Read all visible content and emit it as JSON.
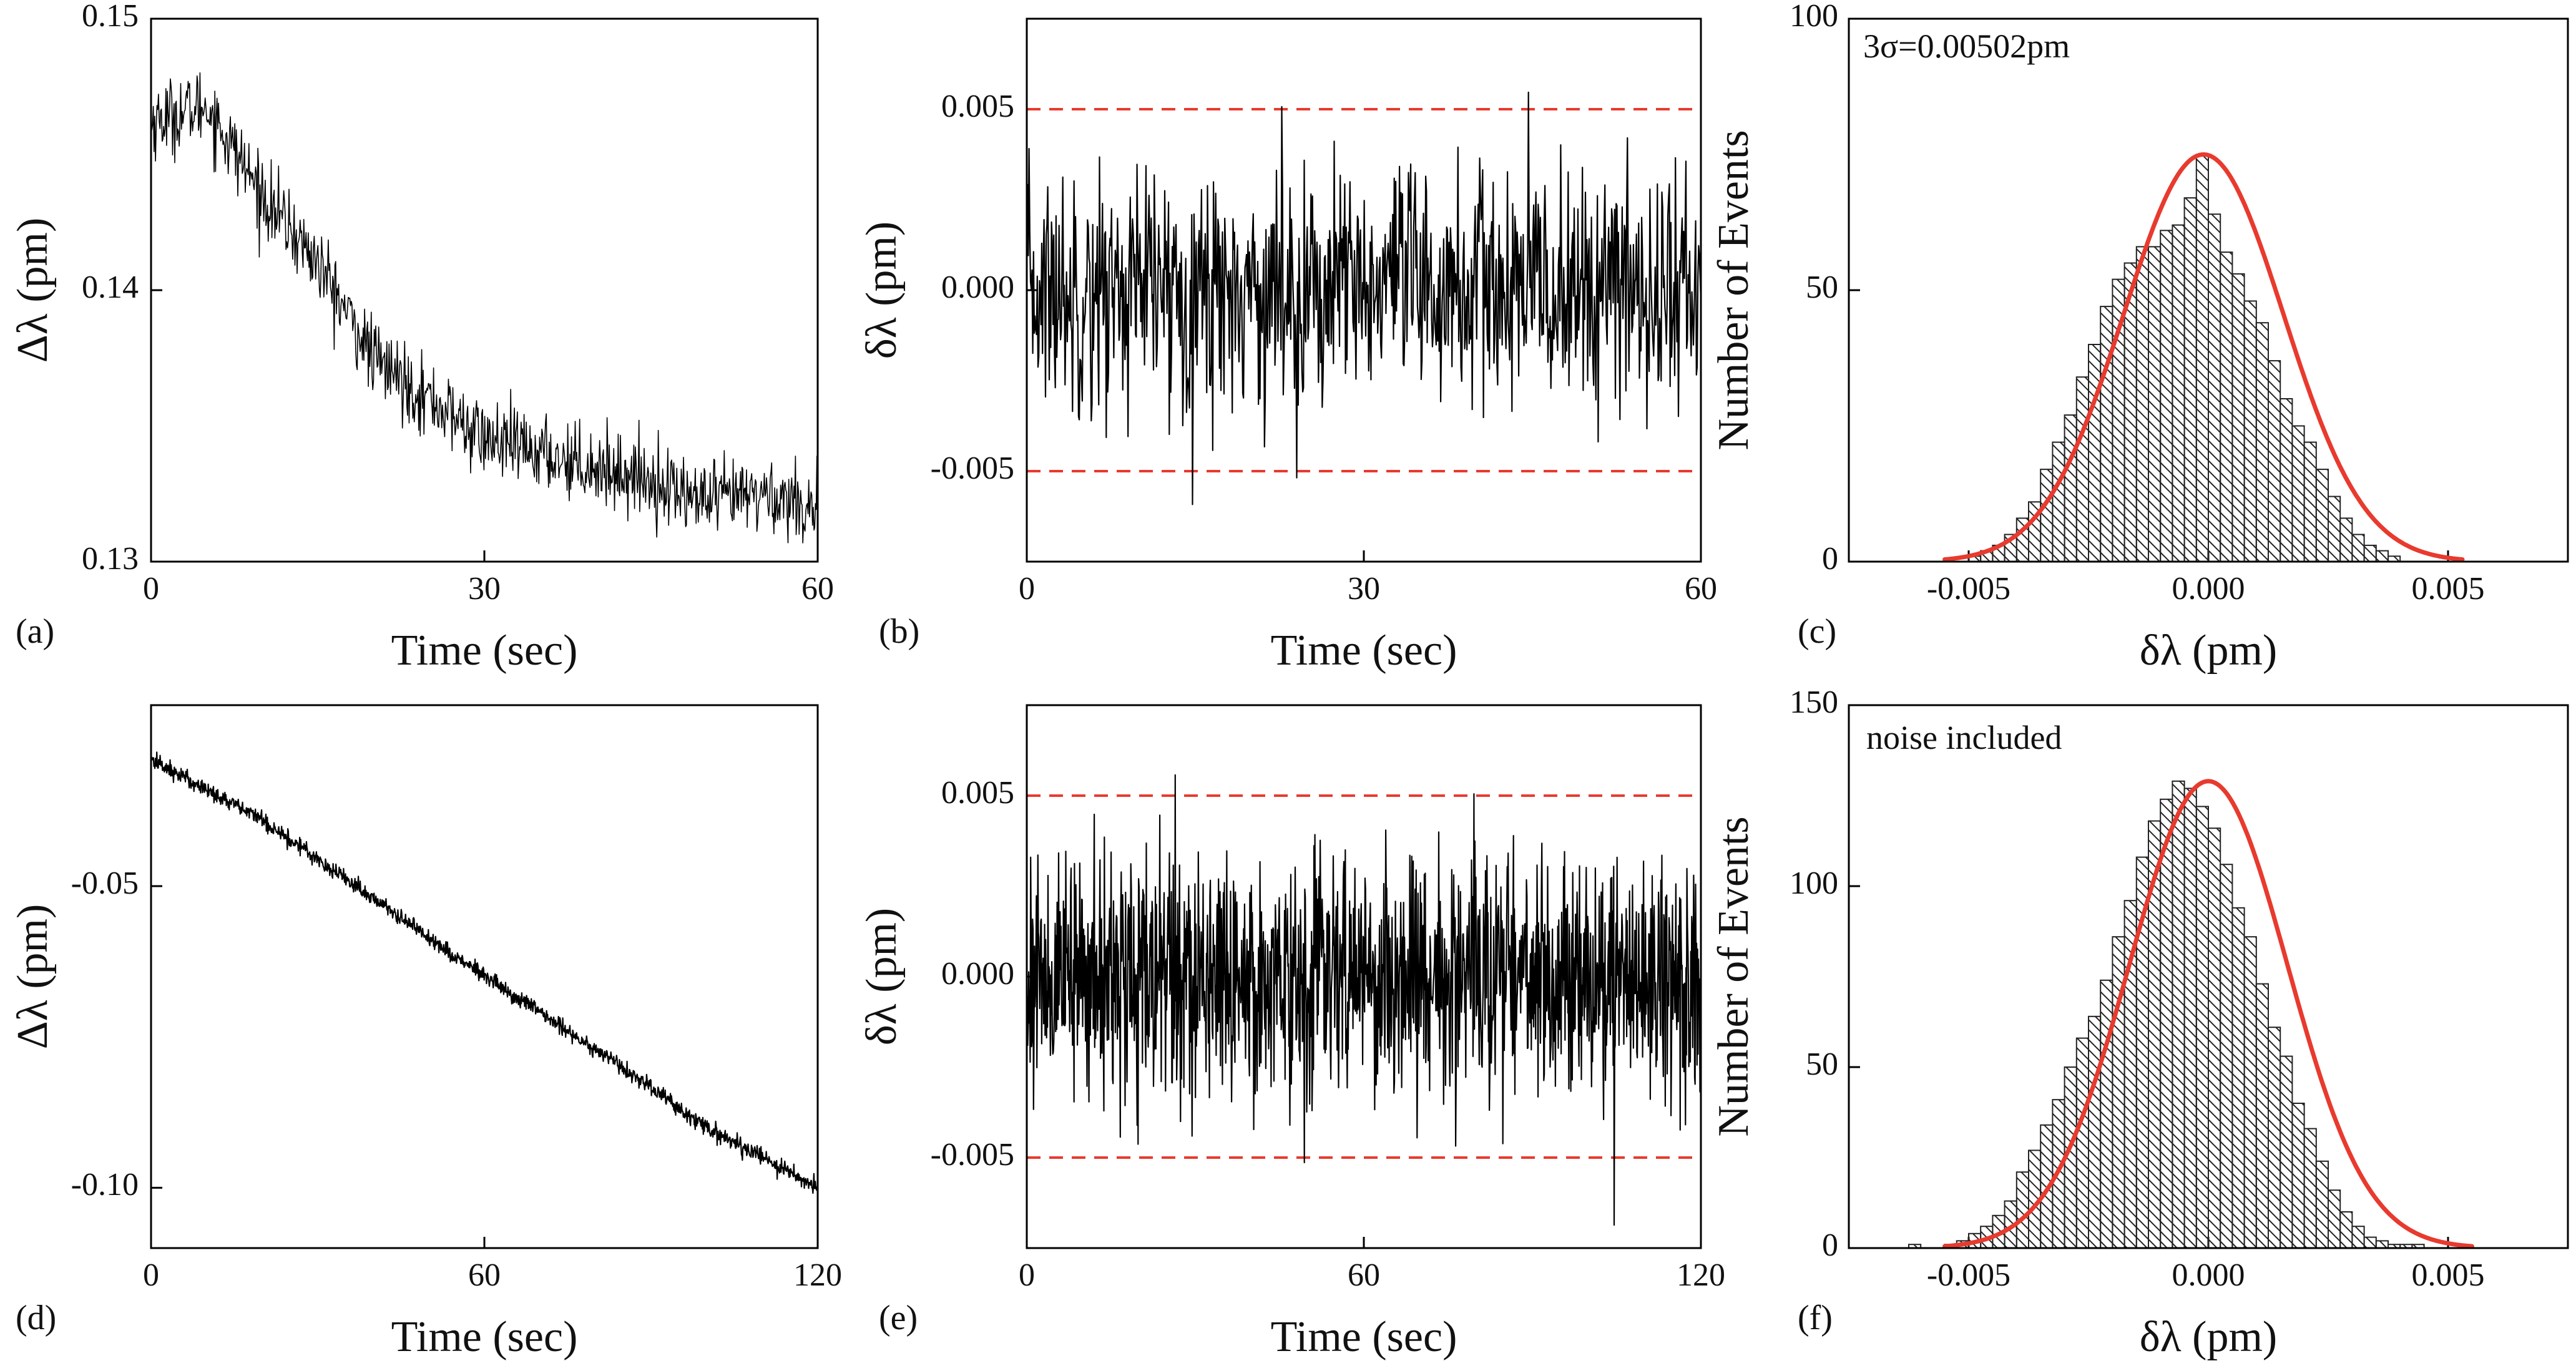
{
  "figure": {
    "description_labels": [
      "(a)",
      "(b)",
      "(c)",
      "(d)",
      "(e)",
      "(f)"
    ]
  },
  "chart_data": [
    {
      "id": "a",
      "panel_label": "(a)",
      "type": "line",
      "xlabel": "Time (sec)",
      "ylabel": "Δλ (pm)",
      "xlim": [
        0,
        60
      ],
      "ylim": [
        0.13,
        0.15
      ],
      "xticks": [
        0,
        30,
        60
      ],
      "xtick_labels": [
        "0",
        "30",
        "60"
      ],
      "yticks": [
        0.13,
        0.14,
        0.15
      ],
      "ytick_labels": [
        "0.13",
        "0.14",
        "0.15"
      ],
      "series": [
        {
          "name": "drift",
          "color": "#000000",
          "n_points": 900,
          "trend": [
            [
              0,
              0.1462
            ],
            [
              5,
              0.1468
            ],
            [
              10,
              0.1435
            ],
            [
              15,
              0.141
            ],
            [
              20,
              0.1375
            ],
            [
              25,
              0.136
            ],
            [
              30,
              0.1345
            ],
            [
              35,
              0.134
            ],
            [
              40,
              0.1335
            ],
            [
              45,
              0.133
            ],
            [
              50,
              0.1322
            ],
            [
              55,
              0.1325
            ],
            [
              60,
              0.132
            ]
          ],
          "noise_sd": 0.0007
        }
      ]
    },
    {
      "id": "b",
      "panel_label": "(b)",
      "type": "line",
      "xlabel": "Time (sec)",
      "ylabel": "δλ (pm)",
      "xlim": [
        0,
        60
      ],
      "ylim": [
        -0.0075,
        0.0075
      ],
      "xticks": [
        0,
        30,
        60
      ],
      "xtick_labels": [
        "0",
        "30",
        "60"
      ],
      "yticks": [
        -0.005,
        0.0,
        0.005
      ],
      "ytick_labels": [
        "-0.005",
        "0.000",
        "0.005"
      ],
      "reference_lines": {
        "values": [
          0.005,
          -0.005
        ],
        "color": "#e83a2e",
        "style": "dashed"
      },
      "series": [
        {
          "name": "residual",
          "color": "#000000",
          "n_points": 900,
          "mean": 0.0,
          "sd": 0.00167
        }
      ]
    },
    {
      "id": "c",
      "panel_label": "(c)",
      "type": "bar",
      "annotation": "3σ=0.00502pm",
      "xlabel": "δλ (pm)",
      "ylabel": "Number of Events",
      "xlim": [
        -0.0075,
        0.0075
      ],
      "ylim": [
        0,
        100
      ],
      "xticks": [
        -0.005,
        0.0,
        0.005
      ],
      "xtick_labels": [
        "-0.005",
        "0.000",
        "0.005"
      ],
      "yticks": [
        0,
        50,
        100
      ],
      "ytick_labels": [
        "0",
        "50",
        "100"
      ],
      "bin_start": -0.0055,
      "bin_width": 0.00025,
      "values": [
        0,
        0,
        1,
        2,
        3,
        5,
        8,
        11,
        17,
        22,
        27,
        34,
        40,
        47,
        52,
        55,
        58,
        58,
        61,
        62,
        67,
        75,
        64,
        57,
        53,
        48,
        44,
        37,
        30,
        25,
        22,
        17,
        12,
        8,
        5,
        3,
        2,
        1,
        0,
        0
      ],
      "fit": {
        "type": "gaussian",
        "mean": -0.0001,
        "sigma": 0.00167,
        "amplitude": 75,
        "color": "#e83a2e",
        "x_range": [
          -0.0055,
          0.0053
        ]
      }
    },
    {
      "id": "d",
      "panel_label": "(d)",
      "type": "line",
      "xlabel": "Time (sec)",
      "ylabel": "Δλ (pm)",
      "xlim": [
        0,
        120
      ],
      "ylim": [
        -0.11,
        -0.02
      ],
      "xticks": [
        0,
        60,
        120
      ],
      "xtick_labels": [
        "0",
        "60",
        "120"
      ],
      "yticks": [
        -0.1,
        -0.05
      ],
      "ytick_labels": [
        "-0.10",
        "-0.05"
      ],
      "series": [
        {
          "name": "drift",
          "color": "#000000",
          "n_points": 1400,
          "trend": [
            [
              0,
              -0.029
            ],
            [
              20,
              -0.039
            ],
            [
              40,
              -0.052
            ],
            [
              60,
              -0.065
            ],
            [
              80,
              -0.077
            ],
            [
              100,
              -0.09
            ],
            [
              120,
              -0.1
            ]
          ],
          "noise_sd": 0.0007
        }
      ]
    },
    {
      "id": "e",
      "panel_label": "(e)",
      "type": "line",
      "xlabel": "Time (sec)",
      "ylabel": "δλ (pm)",
      "xlim": [
        0,
        120
      ],
      "ylim": [
        -0.0075,
        0.0075
      ],
      "xticks": [
        0,
        60,
        120
      ],
      "xtick_labels": [
        "0",
        "60",
        "120"
      ],
      "yticks": [
        -0.005,
        0.0,
        0.005
      ],
      "ytick_labels": [
        "-0.005",
        "0.000",
        "0.005"
      ],
      "reference_lines": {
        "values": [
          0.005,
          -0.005
        ],
        "color": "#e83a2e",
        "style": "dashed"
      },
      "series": [
        {
          "name": "residual",
          "color": "#000000",
          "n_points": 1400,
          "mean": 0.0,
          "sd": 0.00165
        }
      ]
    },
    {
      "id": "f",
      "panel_label": "(f)",
      "type": "bar",
      "annotation": "noise included",
      "xlabel": "δλ (pm)",
      "ylabel": "Number of Events",
      "xlim": [
        -0.0075,
        0.0075
      ],
      "ylim": [
        0,
        150
      ],
      "xticks": [
        -0.005,
        0.0,
        0.005
      ],
      "xtick_labels": [
        "-0.005",
        "0.000",
        "0.005"
      ],
      "yticks": [
        0,
        50,
        100,
        150
      ],
      "ytick_labels": [
        "0",
        "50",
        "100",
        "150"
      ],
      "bin_start": -0.0065,
      "bin_width": 0.00025,
      "values": [
        0,
        1,
        0,
        0,
        1,
        2,
        4,
        6,
        9,
        13,
        21,
        27,
        34,
        41,
        50,
        58,
        64,
        74,
        86,
        96,
        108,
        118,
        124,
        129,
        127,
        122,
        116,
        106,
        94,
        86,
        73,
        61,
        53,
        40,
        33,
        24,
        16,
        10,
        6,
        3,
        2,
        1,
        1,
        1
      ],
      "fit": {
        "type": "gaussian",
        "mean": 0.0,
        "sigma": 0.00165,
        "amplitude": 129,
        "color": "#e83a2e",
        "x_range": [
          -0.0055,
          0.0055
        ]
      }
    }
  ]
}
